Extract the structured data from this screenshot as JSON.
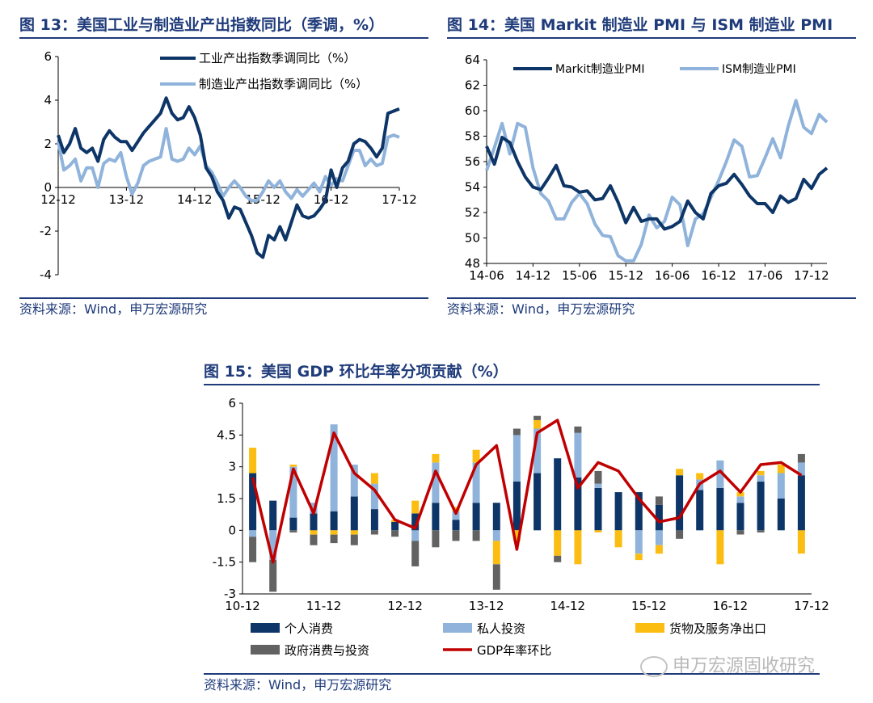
{
  "watermark": "申万宏源固收研究",
  "colors": {
    "dark": "#0d3567",
    "light": "#8fb3da",
    "yellow": "#fcbd12",
    "gray": "#626262",
    "red": "#c00000",
    "title": "#1f3b7a"
  },
  "chart_data": [
    {
      "id": "fig13",
      "type": "line",
      "title": "图 13：美国工业与制造业产出指数同比（季调，%）",
      "source": "资料来源：Wind，申万宏源研究",
      "ylim": [
        -4,
        6
      ],
      "yticks": [
        -4,
        -2,
        0,
        2,
        4,
        6
      ],
      "xticks": [
        "12-12",
        "13-12",
        "14-12",
        "15-12",
        "16-12",
        "17-12"
      ],
      "xtick_index": [
        0,
        12,
        24,
        36,
        48,
        60
      ],
      "legend_position": "top",
      "series": [
        {
          "name": "工业产出指数季调同比（%）",
          "color": "#0d3567",
          "width": 4,
          "values": [
            2.4,
            1.6,
            2.0,
            2.7,
            1.8,
            1.6,
            1.8,
            1.2,
            2.2,
            2.6,
            2.3,
            2.1,
            2.1,
            1.7,
            2.1,
            2.5,
            2.8,
            3.1,
            3.4,
            4.1,
            3.4,
            3.1,
            3.2,
            3.7,
            3.2,
            2.4,
            0.9,
            0.5,
            -0.2,
            -0.6,
            -1.4,
            -0.9,
            -1.0,
            -1.6,
            -2.2,
            -3.0,
            -3.2,
            -2.2,
            -2.4,
            -1.8,
            -2.4,
            -1.6,
            -0.8,
            -1.3,
            -1.4,
            -1.3,
            -1.0,
            -0.6,
            0.8,
            0.0,
            0.9,
            1.2,
            2.0,
            2.2,
            2.1,
            1.8,
            1.4,
            1.8,
            3.4,
            3.5,
            3.6
          ]
        },
        {
          "name": "制造业产出指数季调同比（%）",
          "color": "#8fb3da",
          "width": 4,
          "values": [
            2.1,
            0.8,
            1.0,
            1.3,
            0.3,
            0.9,
            0.9,
            0.0,
            1.1,
            1.3,
            1.2,
            1.6,
            0.5,
            -0.3,
            0.2,
            1.0,
            1.2,
            1.3,
            1.4,
            2.7,
            1.3,
            1.2,
            1.3,
            1.8,
            1.5,
            1.9,
            1.0,
            0.7,
            0.2,
            -0.4,
            0.0,
            0.3,
            0.0,
            -0.4,
            -0.6,
            -0.6,
            -0.2,
            0.3,
            0.0,
            0.3,
            -0.2,
            -0.5,
            -0.1,
            -0.4,
            -0.1,
            0.2,
            -0.2,
            0.5,
            0.1,
            0.4,
            0.3,
            1.0,
            1.7,
            1.7,
            1.0,
            1.3,
            1.0,
            1.1,
            2.3,
            2.4,
            2.3
          ]
        }
      ]
    },
    {
      "id": "fig14",
      "type": "line",
      "title": "图 14：美国 Markit 制造业 PMI 与 ISM 制造业 PMI",
      "source": "资料来源：Wind，申万宏源研究",
      "ylim": [
        48,
        64
      ],
      "yticks": [
        48,
        50,
        52,
        54,
        56,
        58,
        60,
        62,
        64
      ],
      "xticks": [
        "14-06",
        "14-12",
        "15-06",
        "15-12",
        "16-06",
        "16-12",
        "17-06",
        "17-12"
      ],
      "xtick_index": [
        0,
        6,
        12,
        18,
        24,
        30,
        36,
        42
      ],
      "legend_position": "top",
      "series": [
        {
          "name": "Markit制造业PMI",
          "color": "#0d3567",
          "width": 4,
          "values": [
            57.2,
            55.8,
            57.9,
            57.5,
            56.0,
            54.8,
            54.0,
            53.8,
            54.7,
            55.7,
            54.1,
            54.0,
            53.6,
            53.7,
            53.0,
            53.1,
            54.1,
            52.8,
            51.2,
            52.4,
            51.3,
            51.5,
            51.5,
            50.7,
            50.9,
            51.3,
            52.9,
            52.0,
            51.5,
            53.5,
            54.1,
            54.3,
            55.0,
            54.2,
            53.3,
            52.7,
            52.7,
            52.0,
            53.3,
            52.8,
            53.1,
            54.6,
            53.9,
            55.0,
            55.5
          ]
        },
        {
          "name": "ISM制造业PMI",
          "color": "#8fb3da",
          "width": 4,
          "values": [
            55.3,
            57.1,
            59.0,
            56.6,
            59.0,
            58.7,
            55.5,
            53.5,
            52.9,
            51.5,
            51.5,
            52.8,
            53.5,
            52.7,
            51.1,
            50.2,
            50.1,
            48.6,
            48.2,
            48.2,
            49.5,
            51.8,
            50.8,
            51.3,
            53.2,
            52.6,
            49.4,
            51.5,
            51.9,
            53.2,
            54.5,
            56.0,
            57.7,
            57.2,
            54.8,
            54.9,
            56.3,
            57.8,
            56.3,
            58.8,
            60.8,
            58.7,
            58.2,
            59.7,
            59.1
          ]
        }
      ]
    },
    {
      "id": "fig15",
      "type": "bar",
      "stacked": true,
      "title": "图 15：美国 GDP 环比年率分项贡献（%）",
      "source": "资料来源：Wind，申万宏源研究",
      "ylim": [
        -3,
        6
      ],
      "yticks": [
        -3,
        -1.5,
        0,
        1.5,
        3,
        4.5,
        6
      ],
      "xticks": [
        "10-12",
        "11-12",
        "12-12",
        "13-12",
        "14-12",
        "15-12",
        "16-12",
        "17-12"
      ],
      "xtick_index": [
        0,
        4,
        8,
        12,
        16,
        20,
        24,
        28
      ],
      "legend_position": "bottom",
      "series": [
        {
          "name": "个人消费",
          "color": "#0d3567",
          "kind": "bar",
          "values": [
            2.7,
            1.4,
            0.6,
            0.8,
            0.9,
            1.6,
            1.0,
            0.4,
            0.8,
            1.3,
            0.5,
            1.3,
            1.3,
            2.3,
            2.7,
            3.4,
            2.5,
            2.0,
            1.8,
            1.8,
            1.2,
            2.6,
            1.9,
            2.0,
            1.3,
            2.3,
            1.5,
            2.6
          ]
        },
        {
          "name": "私人投资",
          "color": "#8fb3da",
          "kind": "bar",
          "values": [
            -0.3,
            -1.4,
            2.4,
            0.5,
            4.1,
            1.5,
            1.2,
            0.0,
            -0.5,
            1.9,
            0.4,
            1.9,
            -0.5,
            2.2,
            2.1,
            0.0,
            2.1,
            0.2,
            0.0,
            -1.1,
            -0.7,
            0.0,
            0.5,
            1.3,
            0.3,
            0.3,
            1.2,
            0.6
          ]
        },
        {
          "name": "货物及服务净出口",
          "color": "#fcbd12",
          "kind": "bar",
          "values": [
            1.2,
            0.0,
            0.1,
            -0.2,
            -0.2,
            -0.2,
            0.5,
            0.1,
            0.6,
            0.4,
            0.2,
            0.6,
            -1.1,
            -0.5,
            0.4,
            -1.2,
            -1.6,
            -0.1,
            -0.8,
            -0.3,
            -0.4,
            0.3,
            0.3,
            -1.6,
            0.2,
            0.2,
            0.4,
            -1.1
          ]
        },
        {
          "name": "政府消费与投资",
          "color": "#626262",
          "kind": "bar",
          "values": [
            -1.2,
            -1.5,
            -0.1,
            -0.5,
            -0.4,
            -0.5,
            -0.2,
            -0.3,
            -1.2,
            -0.8,
            -0.5,
            -0.5,
            -1.2,
            0.3,
            0.2,
            -0.3,
            0.3,
            0.6,
            0.0,
            0.0,
            0.4,
            -0.4,
            0.0,
            0.0,
            -0.2,
            -0.1,
            0.0,
            0.4
          ]
        },
        {
          "name": "GDP年率环比",
          "color": "#c00000",
          "kind": "line",
          "values": [
            2.5,
            -1.5,
            2.9,
            0.8,
            4.6,
            2.7,
            1.9,
            0.5,
            0.1,
            2.8,
            0.8,
            3.1,
            4.0,
            -0.9,
            4.6,
            5.2,
            2.0,
            3.2,
            2.8,
            1.5,
            0.4,
            0.6,
            2.2,
            2.8,
            1.8,
            3.1,
            3.2,
            2.6
          ]
        }
      ]
    }
  ]
}
